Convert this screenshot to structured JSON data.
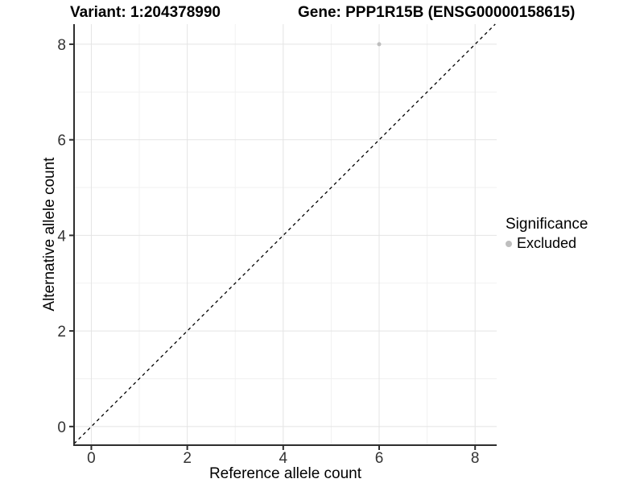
{
  "header": {
    "variant_title": "Variant: 1:204378990",
    "gene_title": "Gene: PPP1R15B (ENSG00000158615)"
  },
  "legend": {
    "title": "Significance",
    "items": [
      {
        "label": "Excluded",
        "color": "#bebebe",
        "marker": "circle-icon"
      }
    ]
  },
  "chart_data": {
    "type": "scatter",
    "title_left": "Variant: 1:204378990",
    "title_right": "Gene: PPP1R15B (ENSG00000158615)",
    "xlabel": "Reference allele count",
    "ylabel": "Alternative allele count",
    "xlim": [
      -0.36,
      8.45
    ],
    "ylim": [
      -0.39,
      8.42
    ],
    "x_ticks": [
      0,
      2,
      4,
      6,
      8
    ],
    "y_ticks": [
      0,
      2,
      4,
      6,
      8
    ],
    "x_minor_ticks": [
      1,
      3,
      5,
      7
    ],
    "y_minor_ticks": [
      1,
      3,
      5,
      7
    ],
    "grid": "major+minor",
    "legend_position": "right",
    "series": [
      {
        "name": "Excluded",
        "color": "#bebebe",
        "marker_radius": 2.5,
        "points": [
          {
            "x": 6,
            "y": 8
          }
        ]
      }
    ],
    "reference_line": {
      "type": "identity",
      "slope": 1,
      "intercept": 0,
      "style": "dashed",
      "color": "#000000"
    },
    "colors": {
      "background": "#ffffff",
      "grid_major": "#e4e4e4",
      "grid_minor": "#f1f1f1",
      "axis_line": "#2e2e2e",
      "tick_text": "#333333"
    }
  }
}
